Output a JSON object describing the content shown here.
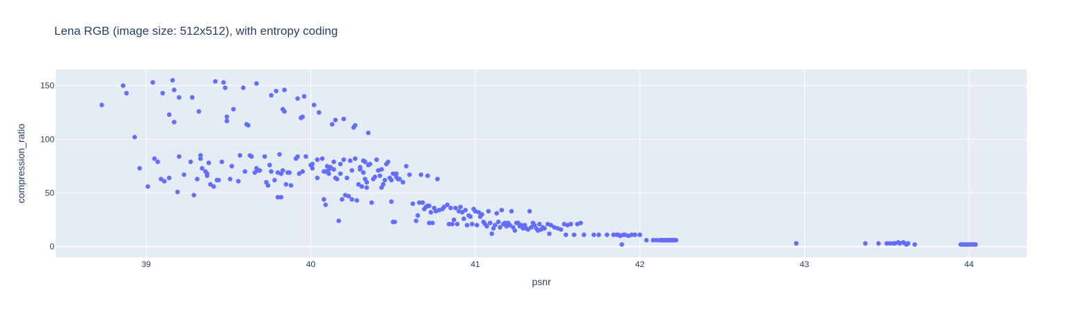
{
  "chart_data": {
    "type": "scatter",
    "title": "Lena RGB (image size: 512x512), with entropy coding",
    "xlabel": "psnr",
    "ylabel": "compression_ratio",
    "xlim": [
      38.45,
      44.35
    ],
    "ylim": [
      -10,
      165
    ],
    "xticks": [
      39,
      40,
      41,
      42,
      43,
      44
    ],
    "yticks": [
      0,
      50,
      100,
      150
    ],
    "grid": true,
    "legend": "none",
    "colors": {
      "background": "#e5ecf6",
      "grid": "#ffffff",
      "marker": "#636efa",
      "text": "#2a3f5f"
    },
    "series": [
      {
        "points": [
          [
            38.73,
            132
          ],
          [
            38.86,
            150
          ],
          [
            38.88,
            143
          ],
          [
            38.93,
            102
          ],
          [
            38.96,
            73
          ],
          [
            39.01,
            56
          ],
          [
            39.04,
            153
          ],
          [
            39.05,
            82
          ],
          [
            39.07,
            79
          ],
          [
            39.09,
            63
          ],
          [
            39.1,
            143
          ],
          [
            39.11,
            61
          ],
          [
            39.14,
            123
          ],
          [
            39.14,
            64
          ],
          [
            39.16,
            155
          ],
          [
            39.17,
            146
          ],
          [
            39.17,
            116
          ],
          [
            39.19,
            51
          ],
          [
            39.2,
            84
          ],
          [
            39.2,
            139
          ],
          [
            39.23,
            67
          ],
          [
            39.27,
            79
          ],
          [
            39.28,
            139
          ],
          [
            39.29,
            48
          ],
          [
            39.31,
            63
          ],
          [
            39.32,
            126
          ],
          [
            39.33,
            82
          ],
          [
            39.33,
            85
          ],
          [
            39.34,
            73
          ],
          [
            39.36,
            70
          ],
          [
            39.37,
            66
          ],
          [
            39.37,
            68
          ],
          [
            39.38,
            78
          ],
          [
            39.39,
            58
          ],
          [
            39.41,
            56
          ],
          [
            39.42,
            154
          ],
          [
            39.43,
            62
          ],
          [
            39.44,
            62
          ],
          [
            39.46,
            79
          ],
          [
            39.47,
            153
          ],
          [
            39.48,
            148
          ],
          [
            39.49,
            117
          ],
          [
            39.49,
            121
          ],
          [
            39.51,
            63
          ],
          [
            39.52,
            75
          ],
          [
            39.53,
            128
          ],
          [
            39.56,
            61
          ],
          [
            39.57,
            85
          ],
          [
            39.59,
            148
          ],
          [
            39.6,
            70
          ],
          [
            39.61,
            114
          ],
          [
            39.62,
            113
          ],
          [
            39.63,
            85
          ],
          [
            39.64,
            84
          ],
          [
            39.66,
            69
          ],
          [
            39.67,
            73
          ],
          [
            39.67,
            152
          ],
          [
            39.68,
            71
          ],
          [
            39.69,
            71
          ],
          [
            39.72,
            84
          ],
          [
            39.73,
            60
          ],
          [
            39.74,
            57
          ],
          [
            39.75,
            76
          ],
          [
            39.76,
            141
          ],
          [
            39.76,
            70
          ],
          [
            39.78,
            62
          ],
          [
            39.79,
            145
          ],
          [
            39.8,
            46
          ],
          [
            39.8,
            69
          ],
          [
            39.81,
            86
          ],
          [
            39.82,
            68
          ],
          [
            39.82,
            46
          ],
          [
            39.83,
            71
          ],
          [
            39.83,
            128
          ],
          [
            39.84,
            146
          ],
          [
            39.84,
            126
          ],
          [
            39.85,
            58
          ],
          [
            39.86,
            69
          ],
          [
            39.87,
            69
          ],
          [
            39.88,
            57
          ],
          [
            39.91,
            82
          ],
          [
            39.92,
            84
          ],
          [
            39.92,
            138
          ],
          [
            39.93,
            68
          ],
          [
            39.94,
            120
          ],
          [
            39.95,
            121
          ],
          [
            39.95,
            70
          ],
          [
            39.96,
            140
          ],
          [
            39.97,
            84
          ],
          [
            40.0,
            76
          ],
          [
            40.01,
            73
          ],
          [
            40.01,
            77
          ],
          [
            40.02,
            132
          ],
          [
            40.04,
            81
          ],
          [
            40.04,
            64
          ],
          [
            40.05,
            125
          ],
          [
            40.07,
            82
          ],
          [
            40.08,
            70
          ],
          [
            40.08,
            44
          ],
          [
            40.09,
            39
          ],
          [
            40.09,
            70
          ],
          [
            40.1,
            75
          ],
          [
            40.11,
            72
          ],
          [
            40.11,
            68
          ],
          [
            40.12,
            74
          ],
          [
            40.13,
            114
          ],
          [
            40.14,
            72
          ],
          [
            40.14,
            79
          ],
          [
            40.15,
            64
          ],
          [
            40.15,
            118
          ],
          [
            40.16,
            63
          ],
          [
            40.17,
            24
          ],
          [
            40.18,
            68
          ],
          [
            40.18,
            77
          ],
          [
            40.19,
            44
          ],
          [
            40.2,
            119
          ],
          [
            40.2,
            81
          ],
          [
            40.21,
            48
          ],
          [
            40.22,
            64
          ],
          [
            40.23,
            47
          ],
          [
            40.24,
            80
          ],
          [
            40.25,
            71
          ],
          [
            40.25,
            44
          ],
          [
            40.26,
            111
          ],
          [
            40.27,
            113
          ],
          [
            40.27,
            82
          ],
          [
            40.28,
            43
          ],
          [
            40.29,
            58
          ],
          [
            40.3,
            74
          ],
          [
            40.3,
            72
          ],
          [
            40.31,
            56
          ],
          [
            40.32,
            80
          ],
          [
            40.32,
            69
          ],
          [
            40.33,
            63
          ],
          [
            40.33,
            79
          ],
          [
            40.34,
            60
          ],
          [
            40.34,
            55
          ],
          [
            40.35,
            106
          ],
          [
            40.35,
            76
          ],
          [
            40.36,
            77
          ],
          [
            40.37,
            41
          ],
          [
            40.38,
            63
          ],
          [
            40.39,
            65
          ],
          [
            40.4,
            81
          ],
          [
            40.41,
            71
          ],
          [
            40.42,
            66
          ],
          [
            40.43,
            72
          ],
          [
            40.43,
            55
          ],
          [
            40.44,
            58
          ],
          [
            40.45,
            62
          ],
          [
            40.46,
            77
          ],
          [
            40.47,
            79
          ],
          [
            40.48,
            64
          ],
          [
            40.49,
            62
          ],
          [
            40.49,
            42
          ],
          [
            40.5,
            68
          ],
          [
            40.5,
            23
          ],
          [
            40.51,
            23
          ],
          [
            40.52,
            65
          ],
          [
            40.52,
            68
          ],
          [
            40.53,
            63
          ],
          [
            40.54,
            63
          ],
          [
            40.56,
            60
          ],
          [
            40.58,
            75
          ],
          [
            40.6,
            67
          ],
          [
            40.62,
            40
          ],
          [
            40.64,
            24
          ],
          [
            40.65,
            29
          ],
          [
            40.66,
            41
          ],
          [
            40.67,
            67
          ],
          [
            40.68,
            41
          ],
          [
            40.69,
            35
          ],
          [
            40.7,
            37
          ],
          [
            40.71,
            66
          ],
          [
            40.71,
            38
          ],
          [
            40.72,
            22
          ],
          [
            40.72,
            38
          ],
          [
            40.73,
            32
          ],
          [
            40.74,
            22
          ],
          [
            40.75,
            36
          ],
          [
            40.76,
            33
          ],
          [
            40.77,
            63
          ],
          [
            40.78,
            34
          ],
          [
            40.8,
            35
          ],
          [
            40.81,
            37
          ],
          [
            40.83,
            39
          ],
          [
            40.84,
            21
          ],
          [
            40.85,
            36
          ],
          [
            40.86,
            21
          ],
          [
            40.87,
            25
          ],
          [
            40.88,
            36
          ],
          [
            40.89,
            21
          ],
          [
            40.9,
            33
          ],
          [
            40.91,
            37
          ],
          [
            40.92,
            32
          ],
          [
            40.93,
            26
          ],
          [
            40.94,
            34
          ],
          [
            40.95,
            20
          ],
          [
            40.96,
            29
          ],
          [
            40.97,
            28
          ],
          [
            40.98,
            21
          ],
          [
            40.99,
            35
          ],
          [
            41.0,
            33
          ],
          [
            41.01,
            20
          ],
          [
            41.02,
            32
          ],
          [
            41.03,
            28
          ],
          [
            41.04,
            30
          ],
          [
            41.05,
            23
          ],
          [
            41.06,
            21
          ],
          [
            41.07,
            19
          ],
          [
            41.08,
            33
          ],
          [
            41.09,
            22
          ],
          [
            41.1,
            12
          ],
          [
            41.11,
            17
          ],
          [
            41.12,
            20
          ],
          [
            41.13,
            31
          ],
          [
            41.14,
            23
          ],
          [
            41.15,
            18
          ],
          [
            41.16,
            34
          ],
          [
            41.17,
            21
          ],
          [
            41.18,
            22
          ],
          [
            41.19,
            19
          ],
          [
            41.2,
            22
          ],
          [
            41.21,
            20
          ],
          [
            41.22,
            33
          ],
          [
            41.23,
            18
          ],
          [
            41.24,
            15
          ],
          [
            41.25,
            22
          ],
          [
            41.26,
            22
          ],
          [
            41.27,
            19
          ],
          [
            41.28,
            20
          ],
          [
            41.29,
            17
          ],
          [
            41.3,
            20
          ],
          [
            41.31,
            17
          ],
          [
            41.32,
            16
          ],
          [
            41.33,
            33
          ],
          [
            41.34,
            18
          ],
          [
            41.35,
            22
          ],
          [
            41.36,
            20
          ],
          [
            41.37,
            17
          ],
          [
            41.38,
            15
          ],
          [
            41.39,
            21
          ],
          [
            41.4,
            16
          ],
          [
            41.41,
            18
          ],
          [
            41.42,
            17
          ],
          [
            41.44,
            21
          ],
          [
            41.45,
            12
          ],
          [
            41.46,
            20
          ],
          [
            41.48,
            18
          ],
          [
            41.5,
            17
          ],
          [
            41.52,
            16
          ],
          [
            41.54,
            21
          ],
          [
            41.55,
            11
          ],
          [
            41.56,
            20
          ],
          [
            41.58,
            21
          ],
          [
            41.6,
            11
          ],
          [
            41.62,
            21
          ],
          [
            41.64,
            22
          ],
          [
            41.66,
            11
          ],
          [
            41.72,
            11
          ],
          [
            41.75,
            11
          ],
          [
            41.8,
            11
          ],
          [
            41.84,
            11
          ],
          [
            41.86,
            11
          ],
          [
            41.87,
            11
          ],
          [
            41.88,
            10
          ],
          [
            41.89,
            2
          ],
          [
            41.9,
            11
          ],
          [
            41.91,
            11
          ],
          [
            41.93,
            10
          ],
          [
            41.95,
            11
          ],
          [
            41.97,
            11
          ],
          [
            42.0,
            11
          ],
          [
            42.04,
            6
          ],
          [
            42.08,
            6
          ],
          [
            42.1,
            6
          ],
          [
            42.12,
            6
          ],
          [
            42.13,
            6
          ],
          [
            42.14,
            6
          ],
          [
            42.15,
            6
          ],
          [
            42.16,
            6
          ],
          [
            42.17,
            6
          ],
          [
            42.18,
            6
          ],
          [
            42.19,
            6
          ],
          [
            42.2,
            6
          ],
          [
            42.21,
            6
          ],
          [
            42.22,
            6
          ],
          [
            42.95,
            3
          ],
          [
            43.37,
            3
          ],
          [
            43.45,
            3
          ],
          [
            43.5,
            3
          ],
          [
            43.52,
            3
          ],
          [
            43.54,
            3
          ],
          [
            43.55,
            3
          ],
          [
            43.57,
            4
          ],
          [
            43.58,
            3
          ],
          [
            43.6,
            4
          ],
          [
            43.61,
            3
          ],
          [
            43.62,
            2
          ],
          [
            43.63,
            3
          ],
          [
            43.67,
            2
          ],
          [
            43.95,
            2
          ],
          [
            43.96,
            2
          ],
          [
            43.97,
            2
          ],
          [
            43.98,
            2
          ],
          [
            43.99,
            2
          ],
          [
            44.0,
            2
          ],
          [
            44.01,
            2
          ],
          [
            44.02,
            2
          ],
          [
            44.03,
            2
          ],
          [
            44.04,
            2
          ]
        ]
      }
    ]
  }
}
